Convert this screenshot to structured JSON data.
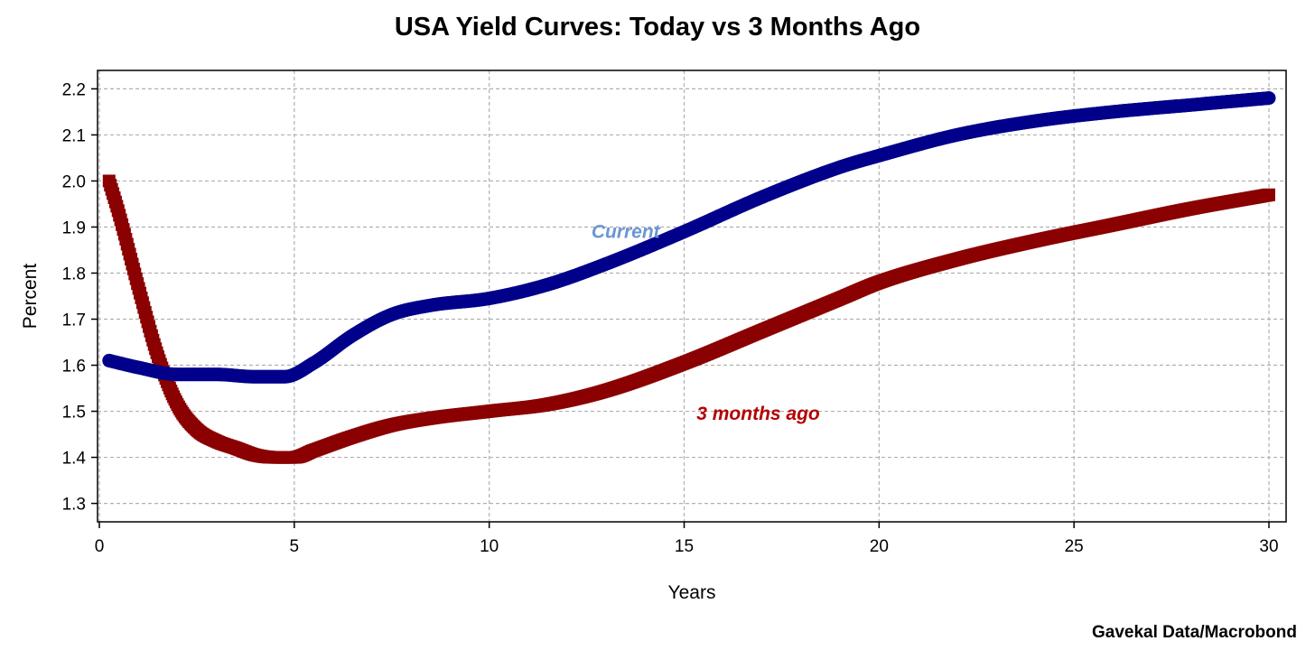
{
  "source": "Gavekal Data/Macrobond",
  "chart_data": {
    "type": "line",
    "title": "USA Yield Curves: Today vs 3 Months Ago",
    "xlabel": "Years",
    "ylabel": "Percent",
    "xlim": [
      0,
      30
    ],
    "ylim": [
      1.26,
      2.24
    ],
    "xticks": [
      0,
      5,
      10,
      15,
      20,
      25,
      30
    ],
    "yticks": [
      "1.3",
      "1.4",
      "1.5",
      "1.6",
      "1.7",
      "1.8",
      "1.9",
      "2.0",
      "2.1",
      "2.2"
    ],
    "grid": true,
    "series": [
      {
        "name": "Current",
        "color": "#00008B",
        "label_color": "#6A96D2",
        "marker": "circle",
        "x": [
          0.25,
          1,
          2,
          3,
          4,
          4.75,
          5.5,
          6.5,
          7.5,
          8.5,
          10,
          11.5,
          13,
          15,
          17,
          19,
          20,
          22,
          24,
          26,
          28,
          30
        ],
        "y": [
          1.61,
          1.595,
          1.58,
          1.58,
          1.575,
          1.575,
          1.605,
          1.665,
          1.71,
          1.73,
          1.745,
          1.775,
          1.82,
          1.89,
          1.965,
          2.03,
          2.055,
          2.1,
          2.13,
          2.15,
          2.165,
          2.18
        ]
      },
      {
        "name": "3 months ago",
        "color": "#8B0000",
        "label_color": "#B40000",
        "marker": "square",
        "x": [
          0.25,
          0.5,
          1,
          1.5,
          2,
          2.5,
          3,
          3.5,
          4,
          4.5,
          5,
          5.5,
          6.5,
          7.5,
          8.5,
          10,
          11.5,
          13,
          15,
          17,
          19,
          20,
          22,
          24,
          26,
          28,
          30
        ],
        "y": [
          2.0,
          1.93,
          1.77,
          1.62,
          1.515,
          1.46,
          1.435,
          1.42,
          1.405,
          1.4,
          1.4,
          1.415,
          1.445,
          1.47,
          1.485,
          1.5,
          1.515,
          1.545,
          1.605,
          1.675,
          1.745,
          1.78,
          1.83,
          1.87,
          1.905,
          1.94,
          1.97
        ]
      }
    ],
    "annotations": [
      {
        "text": "Current",
        "x": 13.5,
        "y": 1.89,
        "series": 0
      },
      {
        "text": "3 months ago",
        "x": 16.9,
        "y": 1.495,
        "series": 1
      }
    ]
  }
}
